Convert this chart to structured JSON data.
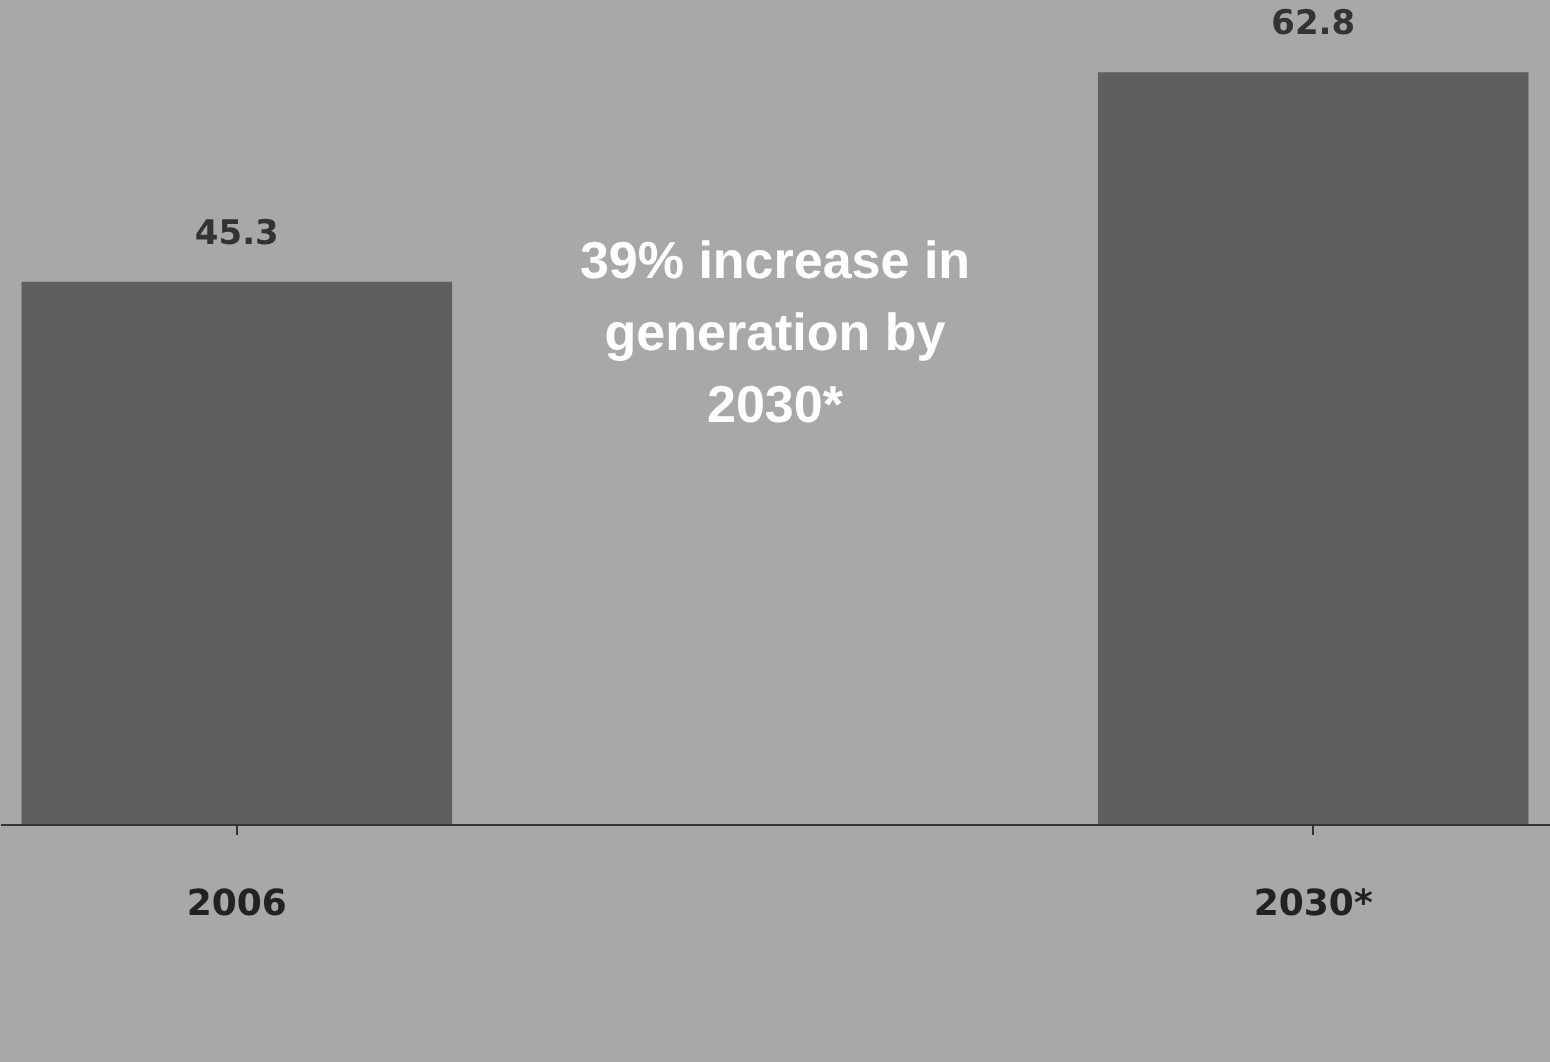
{
  "chart_data": {
    "type": "bar",
    "categories": [
      "2006",
      "2030*"
    ],
    "values": [
      45.3,
      62.8
    ],
    "color": "#5f5f5f",
    "data_labels": true,
    "annotations": [
      "39% increase in generation by 2030*"
    ]
  }
}
